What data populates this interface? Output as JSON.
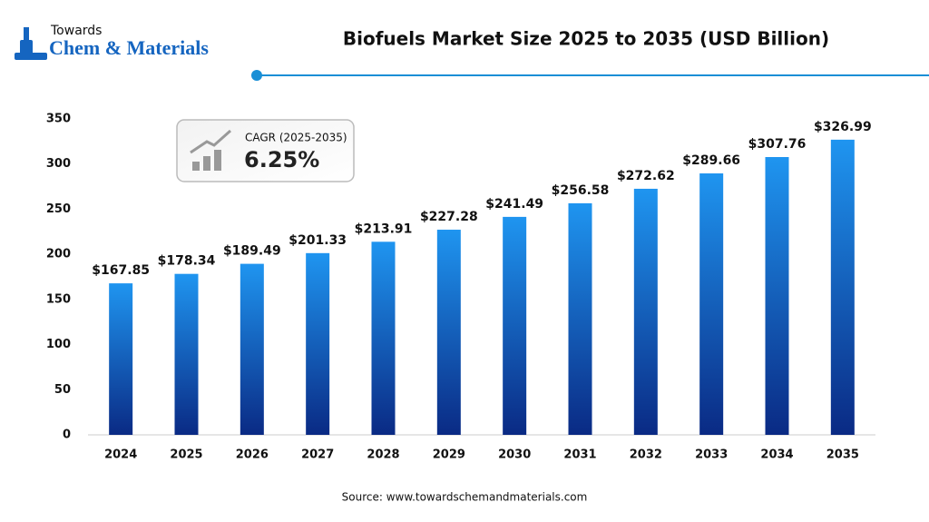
{
  "logo": {
    "line1": "Towards",
    "line2": "Chem & Materials"
  },
  "chart_data": {
    "type": "bar",
    "title": "Biofuels Market Size 2025 to 2035 (USD Billion)",
    "categories": [
      "2024",
      "2025",
      "2026",
      "2027",
      "2028",
      "2029",
      "2030",
      "2031",
      "2032",
      "2033",
      "2034",
      "2035"
    ],
    "values": [
      167.85,
      178.34,
      189.49,
      201.33,
      213.91,
      227.28,
      241.49,
      256.58,
      272.62,
      289.66,
      307.76,
      326.99
    ],
    "value_labels": [
      "$167.85",
      "$178.34",
      "$189.49",
      "$201.33",
      "$213.91",
      "$227.28",
      "$241.49",
      "$256.58",
      "$272.62",
      "$289.66",
      "$307.76",
      "$326.99"
    ],
    "gradient": [
      "#1f95f0",
      "#0a2a84"
    ],
    "ylim": [
      0,
      350
    ],
    "yticks": [
      0,
      50,
      100,
      150,
      200,
      250,
      300,
      350
    ],
    "grid": false,
    "annotation": {
      "label": "CAGR (2025-2035)",
      "value": "6.25%"
    },
    "source": "Source: www.towardschemandmaterials.com"
  }
}
